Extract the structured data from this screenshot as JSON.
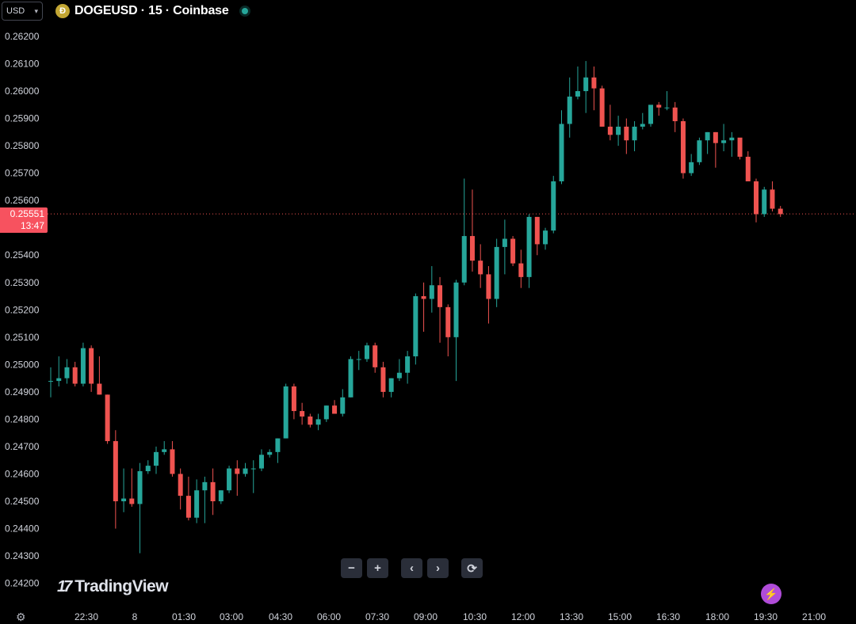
{
  "header": {
    "currency": "USD",
    "symbol_title": "DOGEUSD · 15 · Coinbase",
    "coin_icon": "dogecoin-icon",
    "status_color": "#26a69a"
  },
  "price_tag": {
    "price": "0.25551",
    "countdown": "13:47",
    "color": "#f7525f"
  },
  "controls": {
    "zoom_out": "−",
    "zoom_in": "+",
    "scroll_left": "‹",
    "scroll_right": "›",
    "reset": "⟳"
  },
  "branding": {
    "logo_text": "TradingView",
    "logo_mark": "17"
  },
  "icons": {
    "settings": "gear-icon",
    "bolt": "lightning-icon"
  },
  "chart_data": {
    "type": "candlestick",
    "up_color": "#26a69a",
    "down_color": "#ef5350",
    "ylim": [
      0.2415,
      0.2625
    ],
    "y_ticks": [
      "0.24200",
      "0.24300",
      "0.24400",
      "0.24500",
      "0.24600",
      "0.24700",
      "0.24800",
      "0.24900",
      "0.25000",
      "0.25100",
      "0.25200",
      "0.25300",
      "0.25400",
      "0.25500",
      "0.25600",
      "0.25700",
      "0.25800",
      "0.25900",
      "0.26000",
      "0.26100",
      "0.26200"
    ],
    "x_ticks": [
      "22:30",
      "8",
      "01:30",
      "03:00",
      "04:30",
      "06:00",
      "07:30",
      "09:00",
      "10:30",
      "12:00",
      "13:30",
      "15:00",
      "16:30",
      "18:00",
      "19:30",
      "21:00"
    ],
    "last_price": 0.25551,
    "candles": [
      [
        0.2494,
        0.2499,
        0.2488,
        0.2494
      ],
      [
        0.2494,
        0.2503,
        0.2492,
        0.2495
      ],
      [
        0.2495,
        0.2502,
        0.2493,
        0.2499
      ],
      [
        0.2499,
        0.2501,
        0.2492,
        0.2493
      ],
      [
        0.2493,
        0.2508,
        0.2492,
        0.2506
      ],
      [
        0.2506,
        0.2507,
        0.249,
        0.2493
      ],
      [
        0.2493,
        0.2503,
        0.2489,
        0.2489
      ],
      [
        0.2489,
        0.2489,
        0.2471,
        0.2472
      ],
      [
        0.2472,
        0.2476,
        0.244,
        0.245
      ],
      [
        0.245,
        0.2462,
        0.2446,
        0.2451
      ],
      [
        0.2451,
        0.2462,
        0.2448,
        0.2449
      ],
      [
        0.2449,
        0.2464,
        0.2431,
        0.2461
      ],
      [
        0.2461,
        0.2465,
        0.246,
        0.2463
      ],
      [
        0.2463,
        0.247,
        0.246,
        0.2468
      ],
      [
        0.2468,
        0.2472,
        0.2467,
        0.2469
      ],
      [
        0.2469,
        0.2472,
        0.2459,
        0.246
      ],
      [
        0.246,
        0.2462,
        0.2447,
        0.2452
      ],
      [
        0.2452,
        0.2459,
        0.2443,
        0.2444
      ],
      [
        0.2444,
        0.2458,
        0.2442,
        0.2454
      ],
      [
        0.2454,
        0.2459,
        0.2442,
        0.2457
      ],
      [
        0.2457,
        0.2462,
        0.2445,
        0.245
      ],
      [
        0.245,
        0.2454,
        0.2449,
        0.2454
      ],
      [
        0.2454,
        0.2463,
        0.2453,
        0.2462
      ],
      [
        0.2462,
        0.2465,
        0.2452,
        0.246
      ],
      [
        0.246,
        0.2464,
        0.2459,
        0.2462
      ],
      [
        0.2462,
        0.2465,
        0.2453,
        0.2462
      ],
      [
        0.2462,
        0.2469,
        0.2461,
        0.2467
      ],
      [
        0.2467,
        0.2469,
        0.2466,
        0.2468
      ],
      [
        0.2468,
        0.2473,
        0.2464,
        0.2473
      ],
      [
        0.2473,
        0.2493,
        0.2473,
        0.2492
      ],
      [
        0.2492,
        0.2493,
        0.248,
        0.2483
      ],
      [
        0.2483,
        0.2486,
        0.2478,
        0.2481
      ],
      [
        0.2481,
        0.2482,
        0.2477,
        0.2478
      ],
      [
        0.2478,
        0.2482,
        0.2476,
        0.248
      ],
      [
        0.248,
        0.2485,
        0.2479,
        0.2485
      ],
      [
        0.2485,
        0.2487,
        0.2482,
        0.2482
      ],
      [
        0.2482,
        0.2491,
        0.2481,
        0.2488
      ],
      [
        0.2488,
        0.2503,
        0.2488,
        0.2502
      ],
      [
        0.2502,
        0.2505,
        0.2498,
        0.2502
      ],
      [
        0.2502,
        0.2508,
        0.2501,
        0.2507
      ],
      [
        0.2507,
        0.2508,
        0.2497,
        0.2499
      ],
      [
        0.2499,
        0.2501,
        0.2488,
        0.249
      ],
      [
        0.249,
        0.2495,
        0.2488,
        0.2495
      ],
      [
        0.2495,
        0.2502,
        0.2494,
        0.2497
      ],
      [
        0.2497,
        0.2505,
        0.2493,
        0.2503
      ],
      [
        0.2503,
        0.2526,
        0.25,
        0.2525
      ],
      [
        0.2525,
        0.253,
        0.2512,
        0.2524
      ],
      [
        0.2524,
        0.2536,
        0.2519,
        0.2529
      ],
      [
        0.2529,
        0.2532,
        0.2508,
        0.2521
      ],
      [
        0.2521,
        0.2522,
        0.2503,
        0.251
      ],
      [
        0.251,
        0.2531,
        0.2494,
        0.253
      ],
      [
        0.253,
        0.2568,
        0.2529,
        0.2547
      ],
      [
        0.2547,
        0.2564,
        0.2534,
        0.2538
      ],
      [
        0.2538,
        0.2544,
        0.2528,
        0.2533
      ],
      [
        0.2533,
        0.2536,
        0.2515,
        0.2524
      ],
      [
        0.2524,
        0.2546,
        0.2521,
        0.2543
      ],
      [
        0.2543,
        0.2553,
        0.2533,
        0.2546
      ],
      [
        0.2546,
        0.2547,
        0.2536,
        0.2537
      ],
      [
        0.2537,
        0.2542,
        0.2528,
        0.2532
      ],
      [
        0.2532,
        0.2555,
        0.2528,
        0.2554
      ],
      [
        0.2554,
        0.2554,
        0.254,
        0.2544
      ],
      [
        0.2544,
        0.255,
        0.2542,
        0.2549
      ],
      [
        0.2549,
        0.2569,
        0.2548,
        0.2567
      ],
      [
        0.2567,
        0.2593,
        0.2566,
        0.2588
      ],
      [
        0.2588,
        0.2605,
        0.2583,
        0.2598
      ],
      [
        0.2598,
        0.2609,
        0.2597,
        0.26
      ],
      [
        0.26,
        0.2611,
        0.2592,
        0.2605
      ],
      [
        0.2605,
        0.2609,
        0.2593,
        0.2601
      ],
      [
        0.2601,
        0.2602,
        0.2587,
        0.2587
      ],
      [
        0.2587,
        0.2595,
        0.2582,
        0.2584
      ],
      [
        0.2584,
        0.2591,
        0.258,
        0.2587
      ],
      [
        0.2587,
        0.259,
        0.2577,
        0.2582
      ],
      [
        0.2582,
        0.2589,
        0.2578,
        0.2587
      ],
      [
        0.2587,
        0.2592,
        0.2586,
        0.2588
      ],
      [
        0.2588,
        0.2594,
        0.2587,
        0.2595
      ],
      [
        0.2595,
        0.2596,
        0.2591,
        0.2594
      ],
      [
        0.2594,
        0.26,
        0.2593,
        0.2594
      ],
      [
        0.2594,
        0.2596,
        0.2585,
        0.2589
      ],
      [
        0.2589,
        0.259,
        0.2568,
        0.257
      ],
      [
        0.257,
        0.2577,
        0.2569,
        0.2574
      ],
      [
        0.2574,
        0.2583,
        0.2573,
        0.2582
      ],
      [
        0.2582,
        0.2585,
        0.2577,
        0.2585
      ],
      [
        0.2585,
        0.2585,
        0.2572,
        0.2581
      ],
      [
        0.2581,
        0.2588,
        0.2578,
        0.2582
      ],
      [
        0.2582,
        0.2585,
        0.2576,
        0.2583
      ],
      [
        0.2583,
        0.2582,
        0.2575,
        0.2576
      ],
      [
        0.2576,
        0.2578,
        0.2567,
        0.2567
      ],
      [
        0.2567,
        0.2568,
        0.2552,
        0.2555
      ],
      [
        0.2555,
        0.2565,
        0.2554,
        0.2564
      ],
      [
        0.2564,
        0.2567,
        0.2556,
        0.2557
      ],
      [
        0.2557,
        0.2558,
        0.2554,
        0.2555
      ]
    ]
  }
}
